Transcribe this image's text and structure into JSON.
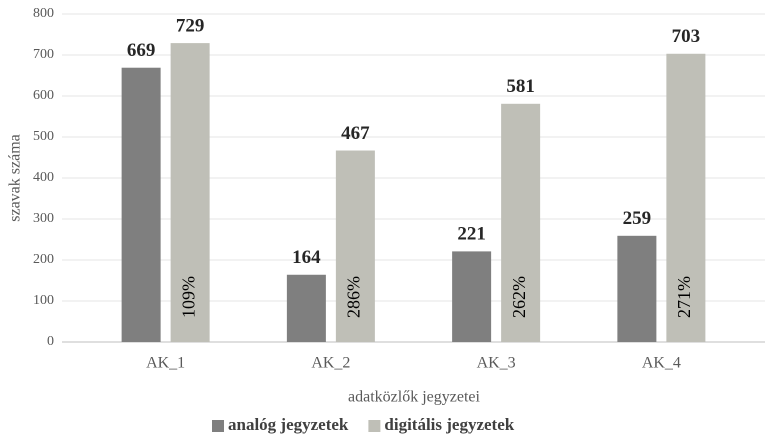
{
  "chart_data": {
    "type": "bar",
    "categories": [
      "AK_1",
      "AK_2",
      "AK_3",
      "AK_4"
    ],
    "series": [
      {
        "name": "analóg jegyzetek",
        "color": "#7f7f7f",
        "values": [
          669,
          164,
          221,
          259
        ]
      },
      {
        "name": "digitális jegyzetek",
        "color": "#bfbfb7",
        "values": [
          729,
          467,
          581,
          703
        ]
      }
    ],
    "annotations": [
      "109%",
      "286%",
      "262%",
      "271%"
    ],
    "ylabel": "szavak száma",
    "xlabel": "adatközlők jegyzetei",
    "ylim": [
      0,
      800
    ],
    "yticks": [
      0,
      100,
      200,
      300,
      400,
      500,
      600,
      700,
      800
    ],
    "grid": true,
    "legend": "bottom"
  }
}
